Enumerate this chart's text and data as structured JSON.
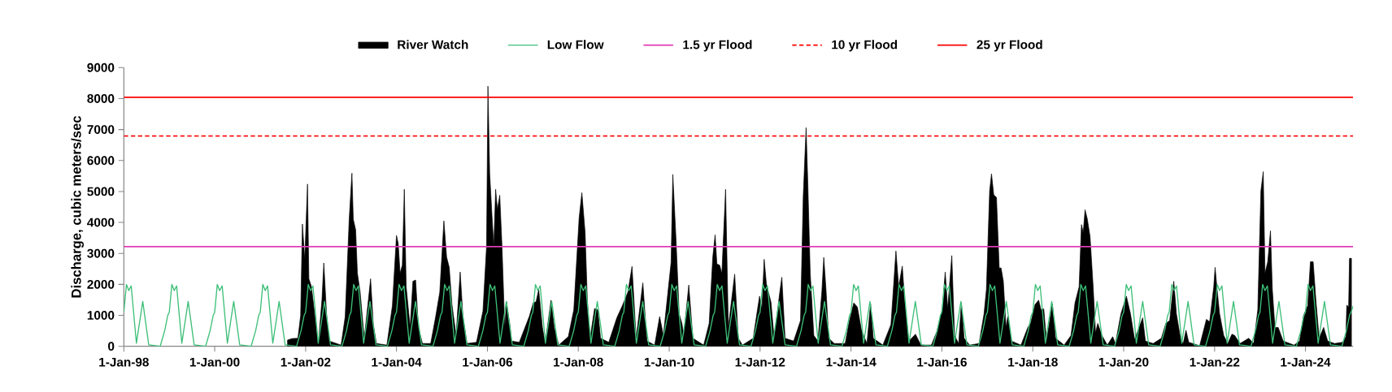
{
  "chart_data": {
    "type": "area",
    "ylabel": "Discharge, cubic meters/sec",
    "xlim": [
      "1998-01-01",
      "2025-01-19"
    ],
    "xticks": [
      {
        "value": "1998-01-01",
        "label": "1-Jan-98"
      },
      {
        "value": "2000-01-01",
        "label": "1-Jan-00"
      },
      {
        "value": "2002-01-01",
        "label": "1-Jan-02"
      },
      {
        "value": "2004-01-01",
        "label": "1-Jan-04"
      },
      {
        "value": "2006-01-01",
        "label": "1-Jan-06"
      },
      {
        "value": "2008-01-01",
        "label": "1-Jan-08"
      },
      {
        "value": "2010-01-01",
        "label": "1-Jan-10"
      },
      {
        "value": "2012-01-01",
        "label": "1-Jan-12"
      },
      {
        "value": "2014-01-01",
        "label": "1-Jan-14"
      },
      {
        "value": "2016-01-01",
        "label": "1-Jan-16"
      },
      {
        "value": "2018-01-01",
        "label": "1-Jan-18"
      },
      {
        "value": "2020-01-01",
        "label": "1-Jan-20"
      },
      {
        "value": "2022-01-01",
        "label": "1-Jan-22"
      },
      {
        "value": "2024-01-01",
        "label": "1-Jan-24"
      }
    ],
    "ylim": [
      0,
      9000
    ],
    "yticks": [
      0,
      1000,
      2000,
      3000,
      4000,
      5000,
      6000,
      7000,
      8000,
      9000
    ],
    "legend": "top",
    "series": [
      {
        "name": "River Watch",
        "color": "#000000",
        "x": [
          "2001-08-08",
          "2001-09-14",
          "2001-10-31",
          "2001-11-22",
          "2001-12-06",
          "2001-12-25",
          "2002-01-16",
          "2002-01-27",
          "2002-02-17",
          "2002-03-22",
          "2002-04-13",
          "2002-05-12",
          "2002-05-27",
          "2002-06-18",
          "2002-07-10",
          "2002-10-13",
          "2002-11-15",
          "2002-12-17",
          "2003-01-08",
          "2003-01-19",
          "2003-02-07",
          "2003-02-21",
          "2003-03-15",
          "2003-04-17",
          "2003-05-20",
          "2003-06-07",
          "2003-06-29",
          "2003-07-24",
          "2003-10-16",
          "2003-11-29",
          "2004-01-01",
          "2004-01-15",
          "2004-01-30",
          "2004-02-17",
          "2004-03-04",
          "2004-03-19",
          "2004-04-20",
          "2004-05-12",
          "2004-06-03",
          "2004-06-25",
          "2004-07-28",
          "2004-10-02",
          "2004-11-11",
          "2004-12-14",
          "2005-01-16",
          "2005-02-07",
          "2005-02-28",
          "2005-03-22",
          "2005-04-24",
          "2005-05-27",
          "2005-06-18",
          "2005-07-21",
          "2005-10-05",
          "2005-11-26",
          "2005-12-25",
          "2006-01-05",
          "2006-01-19",
          "2006-02-07",
          "2006-02-21",
          "2006-03-08",
          "2006-03-22",
          "2006-04-10",
          "2006-04-28",
          "2006-05-20",
          "2006-06-03",
          "2006-07-03",
          "2006-07-13",
          "2006-09-14",
          "2006-12-03",
          "2007-01-04",
          "2007-01-27",
          "2007-02-17",
          "2007-03-19",
          "2007-04-10",
          "2007-05-27",
          "2007-06-22",
          "2007-07-28",
          "2007-10-13",
          "2007-11-26",
          "2008-01-08",
          "2008-01-30",
          "2008-02-25",
          "2008-03-14",
          "2008-04-05",
          "2008-05-11",
          "2008-06-06",
          "2008-06-28",
          "2008-09-02",
          "2008-11-06",
          "2008-12-20",
          "2009-02-03",
          "2009-03-08",
          "2009-04-10",
          "2009-06-03",
          "2009-07-06",
          "2009-09-06",
          "2009-10-16",
          "2009-11-15",
          "2009-12-25",
          "2010-01-16",
          "2010-01-30",
          "2010-02-25",
          "2010-03-22",
          "2010-04-13",
          "2010-04-28",
          "2010-06-07",
          "2010-07-10",
          "2010-10-05",
          "2010-11-18",
          "2010-12-17",
          "2011-01-05",
          "2011-01-19",
          "2011-02-10",
          "2011-02-28",
          "2011-03-30",
          "2011-04-21",
          "2011-06-11",
          "2011-07-10",
          "2011-08-12",
          "2011-11-07",
          "2011-12-06",
          "2011-12-28",
          "2012-01-16",
          "2012-02-03",
          "2012-02-21",
          "2012-03-29",
          "2012-04-23",
          "2012-06-06",
          "2012-06-24",
          "2012-07-20",
          "2012-09-27",
          "2012-11-21",
          "2012-12-13",
          "2013-01-05",
          "2013-01-19",
          "2013-02-07",
          "2013-03-08",
          "2013-04-10",
          "2013-05-12",
          "2013-05-27",
          "2013-06-14",
          "2013-07-06",
          "2013-08-19",
          "2013-11-15",
          "2013-12-17",
          "2014-01-23",
          "2014-02-21",
          "2014-03-26",
          "2014-05-09",
          "2014-06-07",
          "2014-06-29",
          "2014-09-14",
          "2014-11-18",
          "2014-12-28",
          "2015-01-19",
          "2015-02-17",
          "2015-03-08",
          "2015-04-10",
          "2015-06-03",
          "2015-07-17",
          "2015-10-09",
          "2015-11-22",
          "2016-01-05",
          "2016-01-28",
          "2016-02-17",
          "2016-03-21",
          "2016-04-12",
          "2016-05-15",
          "2016-06-06",
          "2016-06-28",
          "2016-08-11",
          "2016-10-26",
          "2016-12-05",
          "2016-12-24",
          "2017-01-19",
          "2017-02-03",
          "2017-02-21",
          "2017-03-15",
          "2017-04-06",
          "2017-04-21",
          "2017-05-09",
          "2017-05-31",
          "2017-06-14",
          "2017-07-13",
          "2017-09-28",
          "2017-11-22",
          "2017-12-14",
          "2018-01-19",
          "2018-02-17",
          "2018-03-08",
          "2018-03-30",
          "2018-04-21",
          "2018-06-07",
          "2018-07-03",
          "2018-09-10",
          "2018-11-04",
          "2018-12-06",
          "2019-01-08",
          "2019-01-27",
          "2019-02-10",
          "2019-02-25",
          "2019-03-15",
          "2019-04-06",
          "2019-05-01",
          "2019-05-20",
          "2019-06-07",
          "2019-07-10",
          "2019-08-23",
          "2019-10-05",
          "2019-10-27",
          "2019-12-10",
          "2020-01-23",
          "2020-02-25",
          "2020-03-29",
          "2020-06-02",
          "2020-06-24",
          "2020-08-25",
          "2020-10-30",
          "2020-12-05",
          "2021-01-05",
          "2021-02-07",
          "2021-02-28",
          "2021-04-02",
          "2021-04-24",
          "2021-05-16",
          "2021-06-07",
          "2021-09-03",
          "2021-10-27",
          "2021-11-22",
          "2021-12-25",
          "2022-01-05",
          "2022-01-19",
          "2022-02-10",
          "2022-03-15",
          "2022-04-17",
          "2022-05-20",
          "2022-06-11",
          "2022-07-24",
          "2022-10-02",
          "2022-11-11",
          "2022-12-14",
          "2023-01-08",
          "2023-01-27",
          "2023-02-10",
          "2023-03-04",
          "2023-03-26",
          "2023-04-10",
          "2023-05-01",
          "2023-05-27",
          "2023-07-06",
          "2023-10-02",
          "2023-11-15",
          "2023-12-17",
          "2024-01-19",
          "2024-02-10",
          "2024-03-03",
          "2024-03-25",
          "2024-04-20",
          "2024-05-26",
          "2024-06-28",
          "2024-08-22",
          "2024-10-26",
          "2024-11-21",
          "2024-11-28",
          "2024-12-13",
          "2024-12-20",
          "2025-01-05"
        ],
        "values": [
          200,
          250,
          260,
          1000,
          3950,
          2800,
          5240,
          2180,
          1920,
          790,
          90,
          1490,
          2690,
          1050,
          170,
          40,
          960,
          4100,
          5590,
          4100,
          3760,
          2360,
          1750,
          260,
          1490,
          2180,
          700,
          90,
          40,
          1310,
          3580,
          3320,
          2360,
          2620,
          5070,
          1920,
          610,
          2100,
          2140,
          610,
          90,
          90,
          960,
          1750,
          4050,
          2880,
          2550,
          1350,
          350,
          2400,
          960,
          90,
          130,
          1140,
          3230,
          8400,
          5590,
          4190,
          3230,
          5070,
          4410,
          4880,
          3230,
          610,
          1440,
          610,
          170,
          130,
          960,
          1400,
          1440,
          1830,
          610,
          90,
          1490,
          610,
          40,
          310,
          1180,
          4150,
          4960,
          3670,
          1490,
          260,
          1220,
          1180,
          260,
          130,
          920,
          1310,
          1750,
          2580,
          260,
          2050,
          170,
          40,
          960,
          350,
          1880,
          2710,
          5550,
          3410,
          1050,
          740,
          350,
          1980,
          260,
          40,
          740,
          2880,
          3600,
          2660,
          2620,
          2360,
          5070,
          610,
          2330,
          260,
          40,
          260,
          1050,
          1620,
          1220,
          2810,
          2010,
          1420,
          260,
          1700,
          2230,
          260,
          170,
          830,
          4850,
          7060,
          5240,
          2360,
          350,
          170,
          1790,
          2870,
          1830,
          260,
          90,
          90,
          790,
          1400,
          1270,
          520,
          90,
          1380,
          260,
          40,
          700,
          3080,
          1920,
          2590,
          1490,
          170,
          390,
          40,
          40,
          480,
          1220,
          2400,
          1220,
          2930,
          350,
          90,
          1400,
          260,
          40,
          90,
          1050,
          1830,
          5020,
          5570,
          4890,
          4810,
          2530,
          2530,
          2100,
          610,
          960,
          170,
          40,
          610,
          740,
          1350,
          1490,
          1180,
          1210,
          170,
          1380,
          260,
          40,
          350,
          1400,
          1920,
          3930,
          3670,
          4410,
          4110,
          3540,
          1920,
          440,
          740,
          350,
          40,
          310,
          90,
          1050,
          1620,
          1050,
          220,
          920,
          170,
          90,
          260,
          740,
          830,
          2100,
          1050,
          260,
          90,
          520,
          130,
          20,
          870,
          790,
          1920,
          2550,
          1920,
          1050,
          350,
          90,
          390,
          350,
          90,
          260,
          90,
          1180,
          5020,
          5640,
          2360,
          2730,
          3730,
          1830,
          610,
          610,
          170,
          40,
          170,
          1000,
          1310,
          2730,
          2730,
          1490,
          260,
          610,
          170,
          90,
          130,
          310,
          1330,
          1270,
          2840,
          2840
        ]
      },
      {
        "name": "Low Flow",
        "type": "line",
        "color": "#3dbf78",
        "x": [
          "1998-01-01",
          "1998-01-22",
          "1998-02-10",
          "1998-03-01",
          "1998-04-12",
          "1998-06-02",
          "1998-07-20",
          "1998-10-20",
          "1998-11-25",
          "1998-12-20",
          "1999-01-01",
          "1999-01-22",
          "1999-02-10",
          "1999-03-01",
          "1999-04-12",
          "1999-06-02",
          "1999-07-20",
          "1999-10-20",
          "1999-11-25",
          "1999-12-20",
          "2000-01-01",
          "2000-01-22",
          "2000-02-10",
          "2000-03-01",
          "2000-04-12",
          "2000-06-02",
          "2000-07-20",
          "2000-10-20",
          "2000-11-25",
          "2000-12-20",
          "2001-01-01",
          "2001-01-22",
          "2001-02-10",
          "2001-03-01",
          "2001-04-12",
          "2001-06-02",
          "2001-07-20",
          "2001-10-20",
          "2001-11-25",
          "2001-12-20",
          "2002-01-01",
          "2002-01-22",
          "2002-02-10",
          "2002-03-01",
          "2002-04-12",
          "2002-06-02",
          "2002-07-20",
          "2002-10-20",
          "2002-11-25",
          "2002-12-20",
          "2003-01-01",
          "2003-01-22",
          "2003-02-10",
          "2003-03-01",
          "2003-04-12",
          "2003-06-02",
          "2003-07-20",
          "2003-10-20",
          "2003-11-25",
          "2003-12-20",
          "2004-01-01",
          "2004-01-22",
          "2004-02-10",
          "2004-03-01",
          "2004-04-12",
          "2004-06-02",
          "2004-07-20",
          "2004-10-20",
          "2004-11-25",
          "2004-12-20",
          "2005-01-01",
          "2005-01-22",
          "2005-02-10",
          "2005-03-01",
          "2005-04-12",
          "2005-06-02",
          "2005-07-20",
          "2005-10-20",
          "2005-11-25",
          "2005-12-20",
          "2006-01-01",
          "2006-01-22",
          "2006-02-10",
          "2006-03-01",
          "2006-04-12",
          "2006-06-02",
          "2006-07-20",
          "2006-10-20",
          "2006-11-25",
          "2006-12-20",
          "2007-01-01",
          "2007-01-22",
          "2007-02-10",
          "2007-03-01",
          "2007-04-12",
          "2007-06-02",
          "2007-07-20",
          "2007-10-20",
          "2007-11-25",
          "2007-12-20",
          "2008-01-01",
          "2008-01-22",
          "2008-02-10",
          "2008-03-01",
          "2008-04-12",
          "2008-06-02",
          "2008-07-20",
          "2008-10-20",
          "2008-11-25",
          "2008-12-20",
          "2009-01-01",
          "2009-01-22",
          "2009-02-10",
          "2009-03-01",
          "2009-04-12",
          "2009-06-02",
          "2009-07-20",
          "2009-10-20",
          "2009-11-25",
          "2009-12-20",
          "2010-01-01",
          "2010-01-22",
          "2010-02-10",
          "2010-03-01",
          "2010-04-12",
          "2010-06-02",
          "2010-07-20",
          "2010-10-20",
          "2010-11-25",
          "2010-12-20",
          "2011-01-01",
          "2011-01-22",
          "2011-02-10",
          "2011-03-01",
          "2011-04-12",
          "2011-06-02",
          "2011-07-20",
          "2011-10-20",
          "2011-11-25",
          "2011-12-20",
          "2012-01-01",
          "2012-01-22",
          "2012-02-10",
          "2012-03-01",
          "2012-04-12",
          "2012-06-02",
          "2012-07-20",
          "2012-10-20",
          "2012-11-25",
          "2012-12-20",
          "2013-01-01",
          "2013-01-22",
          "2013-02-10",
          "2013-03-01",
          "2013-04-12",
          "2013-06-02",
          "2013-07-20",
          "2013-10-20",
          "2013-11-25",
          "2013-12-20",
          "2014-01-01",
          "2014-01-22",
          "2014-02-10",
          "2014-03-01",
          "2014-04-12",
          "2014-06-02",
          "2014-07-20",
          "2014-10-20",
          "2014-11-25",
          "2014-12-20",
          "2015-01-01",
          "2015-01-22",
          "2015-02-10",
          "2015-03-01",
          "2015-04-12",
          "2015-06-02",
          "2015-07-20",
          "2015-10-20",
          "2015-11-25",
          "2015-12-20",
          "2016-01-01",
          "2016-01-22",
          "2016-02-10",
          "2016-03-01",
          "2016-04-12",
          "2016-06-02",
          "2016-07-20",
          "2016-10-20",
          "2016-11-25",
          "2016-12-20",
          "2017-01-01",
          "2017-01-22",
          "2017-02-10",
          "2017-03-01",
          "2017-04-12",
          "2017-06-02",
          "2017-07-20",
          "2017-10-20",
          "2017-11-25",
          "2017-12-20",
          "2018-01-01",
          "2018-01-22",
          "2018-02-10",
          "2018-03-01",
          "2018-04-12",
          "2018-06-02",
          "2018-07-20",
          "2018-10-20",
          "2018-11-25",
          "2018-12-20",
          "2019-01-01",
          "2019-01-22",
          "2019-02-10",
          "2019-03-01",
          "2019-04-12",
          "2019-06-02",
          "2019-07-20",
          "2019-10-20",
          "2019-11-25",
          "2019-12-20",
          "2020-01-01",
          "2020-01-22",
          "2020-02-10",
          "2020-03-01",
          "2020-04-12",
          "2020-06-02",
          "2020-07-20",
          "2020-10-20",
          "2020-11-25",
          "2020-12-20",
          "2021-01-01",
          "2021-01-22",
          "2021-02-10",
          "2021-03-01",
          "2021-04-12",
          "2021-06-02",
          "2021-07-20",
          "2021-10-20",
          "2021-11-25",
          "2021-12-20",
          "2022-01-01",
          "2022-01-22",
          "2022-02-10",
          "2022-03-01",
          "2022-04-12",
          "2022-06-02",
          "2022-07-20",
          "2022-10-20",
          "2022-11-25",
          "2022-12-20",
          "2023-01-01",
          "2023-01-22",
          "2023-02-10",
          "2023-03-01",
          "2023-04-12",
          "2023-06-02",
          "2023-07-20",
          "2023-10-20",
          "2023-11-25",
          "2023-12-20",
          "2024-01-01",
          "2024-01-22",
          "2024-02-10",
          "2024-03-01",
          "2024-04-12",
          "2024-06-02",
          "2024-07-20",
          "2024-10-20",
          "2024-11-25",
          "2024-12-20",
          "2025-01-01",
          "2025-01-19"
        ],
        "values": [
          1100,
          2000,
          1800,
          1950,
          100,
          1450,
          50,
          0,
          500,
          1000,
          1100,
          2000,
          1800,
          1950,
          100,
          1450,
          50,
          0,
          500,
          1000,
          1100,
          2000,
          1800,
          1950,
          100,
          1450,
          50,
          0,
          500,
          1000,
          1100,
          2000,
          1800,
          1950,
          100,
          1450,
          50,
          0,
          500,
          1000,
          1100,
          2000,
          1800,
          1950,
          100,
          1450,
          50,
          0,
          500,
          1000,
          1100,
          2000,
          1800,
          1950,
          100,
          1450,
          50,
          0,
          500,
          1000,
          1100,
          2000,
          1800,
          1950,
          100,
          1450,
          50,
          0,
          500,
          1000,
          1100,
          2000,
          1800,
          1950,
          100,
          1450,
          50,
          0,
          500,
          1000,
          1100,
          2000,
          1800,
          1950,
          100,
          1450,
          50,
          0,
          500,
          1000,
          1100,
          2000,
          1800,
          1950,
          100,
          1450,
          50,
          0,
          500,
          1000,
          1100,
          2000,
          1800,
          1950,
          100,
          1450,
          50,
          0,
          500,
          1000,
          1100,
          2000,
          1800,
          1950,
          100,
          1450,
          50,
          0,
          500,
          1000,
          1100,
          2000,
          1800,
          1950,
          100,
          1450,
          50,
          0,
          500,
          1000,
          1100,
          2000,
          1800,
          1950,
          100,
          1450,
          50,
          0,
          500,
          1000,
          1100,
          2000,
          1800,
          1950,
          100,
          1450,
          50,
          0,
          500,
          1000,
          1100,
          2000,
          1800,
          1950,
          100,
          1450,
          50,
          0,
          500,
          1000,
          1100,
          2000,
          1800,
          1950,
          100,
          1450,
          50,
          0,
          500,
          1000,
          1100,
          2000,
          1800,
          1950,
          100,
          1450,
          50,
          0,
          500,
          1000,
          1100,
          2000,
          1800,
          1950,
          100,
          1450,
          50,
          0,
          500,
          1000,
          1100,
          2000,
          1800,
          1950,
          100,
          1450,
          50,
          0,
          500,
          1000,
          1100,
          2000,
          1800,
          1950,
          100,
          1450,
          50,
          0,
          500,
          1000,
          1100,
          2000,
          1800,
          1950,
          100,
          1450,
          50,
          0,
          500,
          1000,
          1100,
          2000,
          1800,
          1950,
          100,
          1450,
          50,
          0,
          500,
          1000,
          1100,
          2000,
          1800,
          1950,
          100,
          1450,
          50,
          0,
          500,
          1000,
          1100,
          2000,
          1800,
          1950,
          100,
          1450,
          50,
          0,
          500,
          1000,
          1100,
          2000,
          1800,
          1950,
          100,
          1450,
          50,
          0,
          500,
          1000,
          1100,
          2000,
          1800,
          1950,
          100,
          1450,
          50,
          0,
          500,
          1000,
          1100,
          1300
        ]
      }
    ],
    "ref_lines": [
      {
        "axis": "y",
        "value": 3220,
        "label": "1.5 yr Flood",
        "color": "#e03cb4",
        "line_style": "solid"
      },
      {
        "axis": "y",
        "value": 6790,
        "label": "10 yr Flood",
        "color": "#ff0000",
        "line_style": "dashed"
      },
      {
        "axis": "y",
        "value": 8040,
        "label": "25 yr Flood",
        "color": "#ff0000",
        "line_style": "solid"
      }
    ]
  }
}
